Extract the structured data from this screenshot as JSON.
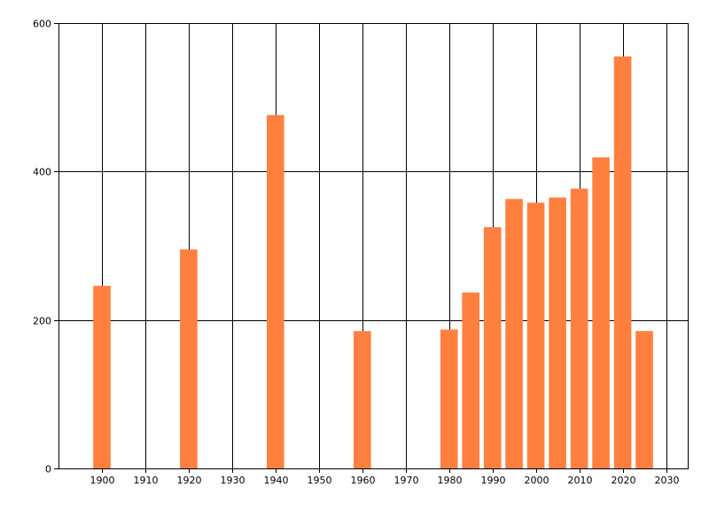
{
  "chart_data": {
    "type": "bar",
    "title": "",
    "xlabel": "",
    "ylabel": "",
    "x": [
      1900,
      1920,
      1940,
      1960,
      1980,
      1985,
      1990,
      1995,
      2000,
      2005,
      2010,
      2015,
      2020,
      2025
    ],
    "values": [
      246,
      295,
      476,
      185,
      187,
      237,
      325,
      363,
      358,
      365,
      377,
      419,
      555,
      185
    ],
    "xlim": [
      1890,
      2035
    ],
    "ylim": [
      0,
      600
    ],
    "x_ticks": [
      1900,
      1910,
      1920,
      1930,
      1940,
      1950,
      1960,
      1970,
      1980,
      1990,
      2000,
      2010,
      2020,
      2030
    ],
    "x_tick_labels": [
      "1900",
      "1910",
      "1920",
      "1930",
      "1940",
      "1950",
      "1960",
      "1970",
      "1980",
      "1990",
      "2000",
      "2010",
      "2020",
      "2030"
    ],
    "y_ticks": [
      0,
      200,
      400,
      600
    ],
    "y_tick_labels": [
      "0",
      "200",
      "400",
      "600"
    ],
    "bar_width_years": 4,
    "grid": true,
    "bar_color": "#FF7F3F",
    "grid_color": "#000000"
  }
}
